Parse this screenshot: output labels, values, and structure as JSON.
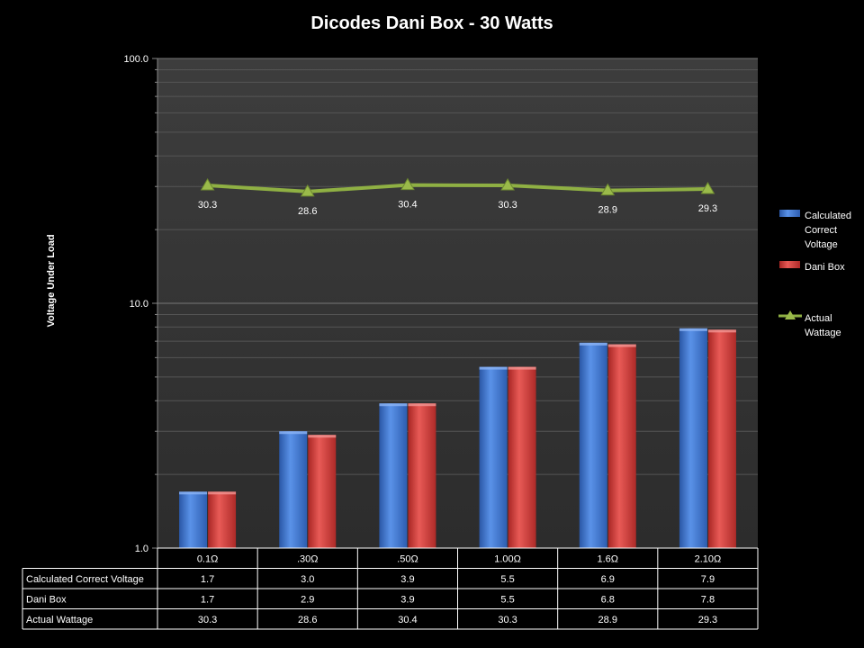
{
  "chart_data": {
    "type": "bar",
    "title": "Dicodes Dani Box - 30 Watts",
    "ylabel": "Voltage Under Load",
    "yscale": "log",
    "ylim": [
      1.0,
      100.0
    ],
    "yticks": [
      "1.0",
      "10.0",
      "100.0"
    ],
    "grid": true,
    "legend": "right",
    "categories": [
      "0.1Ω",
      ".30Ω",
      ".50Ω",
      "1.00Ω",
      "1.6Ω",
      "2.10Ω"
    ],
    "series": [
      {
        "name": "Calculated Correct Voltage",
        "type": "bar",
        "color": "#3d74cc",
        "values": [
          1.7,
          3.0,
          3.9,
          5.5,
          6.9,
          7.9
        ],
        "table_values": [
          "1.7",
          "3.0",
          "3.9",
          "5.5",
          "6.9",
          "7.9"
        ]
      },
      {
        "name": "Dani Box",
        "type": "bar",
        "color": "#d63b38",
        "values": [
          1.7,
          2.9,
          3.9,
          5.5,
          6.8,
          7.8
        ],
        "table_values": [
          "1.7",
          "2.9",
          "3.9",
          "5.5",
          "6.8",
          "7.8"
        ]
      },
      {
        "name": "Actual Wattage",
        "type": "line",
        "color": "#8fb043",
        "values": [
          30.3,
          28.6,
          30.4,
          30.3,
          28.9,
          29.3
        ],
        "table_values": [
          "30.3",
          "28.6",
          "30.4",
          "30.3",
          "28.9",
          "29.3"
        ]
      }
    ],
    "legend_lines": [
      [
        "Calculated",
        "Correct",
        "Voltage"
      ],
      [
        "Dani Box"
      ],
      [
        "Actual",
        "Wattage"
      ]
    ]
  }
}
